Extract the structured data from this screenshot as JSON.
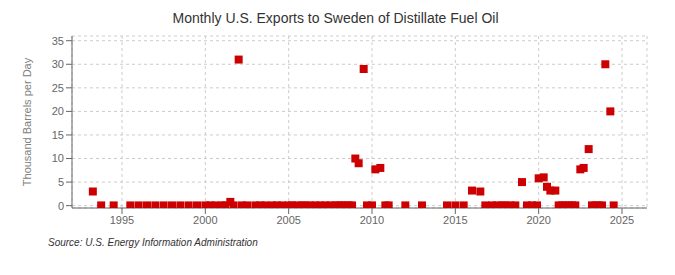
{
  "chart_data": {
    "type": "scatter",
    "title": "Monthly U.S. Exports to Sweden of Distillate Fuel Oil",
    "ylabel": "Thousand Barrels per Day",
    "annotations": [
      "Source: U.S. Energy Information Administration"
    ],
    "color": "#cc0000",
    "marker": "square",
    "grid": true,
    "xlim": [
      1992.0,
      2026.5
    ],
    "ylim": [
      -0.5,
      36
    ],
    "xticks": [
      1995,
      2000,
      2005,
      2010,
      2015,
      2020,
      2025
    ],
    "yticks": [
      0,
      5,
      10,
      15,
      20,
      25,
      30,
      35
    ],
    "x": [
      1993.25,
      1993.75,
      1994.5,
      1995.5,
      1996.0,
      1996.5,
      1997.0,
      1997.5,
      1998.0,
      1998.5,
      1999.0,
      1999.5,
      2000.0,
      2000.3,
      2000.6,
      2001.0,
      2001.2,
      2001.5,
      2001.7,
      2002.0,
      2002.2,
      2002.5,
      2003.0,
      2003.3,
      2003.6,
      2004.0,
      2004.3,
      2004.6,
      2005.0,
      2005.2,
      2005.5,
      2005.8,
      2006.0,
      2006.3,
      2006.6,
      2006.9,
      2007.2,
      2007.5,
      2007.8,
      2008.0,
      2008.2,
      2008.4,
      2008.6,
      2008.8,
      2009.0,
      2009.2,
      2009.5,
      2009.7,
      2010.0,
      2010.2,
      2010.5,
      2010.8,
      2011.0,
      2012.0,
      2013.0,
      2014.5,
      2015.0,
      2015.5,
      2016.0,
      2016.5,
      2016.8,
      2017.2,
      2017.5,
      2017.8,
      2018.0,
      2018.3,
      2018.6,
      2019.0,
      2019.3,
      2019.6,
      2019.9,
      2020.0,
      2020.3,
      2020.5,
      2020.7,
      2021.0,
      2021.2,
      2021.4,
      2021.6,
      2021.8,
      2022.0,
      2022.2,
      2022.5,
      2022.7,
      2023.0,
      2023.2,
      2023.4,
      2023.6,
      2023.8,
      2024.0,
      2024.3,
      2024.5
    ],
    "values": [
      3.0,
      0.05,
      0.05,
      0.05,
      0.05,
      0.05,
      0.05,
      0.05,
      0.05,
      0.05,
      0.05,
      0.05,
      0.05,
      0.05,
      0.05,
      0.05,
      0.05,
      0.8,
      0.05,
      31.0,
      0.05,
      0.05,
      0.05,
      0.05,
      0.05,
      0.05,
      0.05,
      0.05,
      0.05,
      0.05,
      0.05,
      0.05,
      0.05,
      0.05,
      0.05,
      0.05,
      0.05,
      0.05,
      0.05,
      0.05,
      0.05,
      0.05,
      0.05,
      0.05,
      10.0,
      9.0,
      29.0,
      0.05,
      0.05,
      7.7,
      8.0,
      0.05,
      0.05,
      0.05,
      0.05,
      0.05,
      0.05,
      0.05,
      3.2,
      3.0,
      0.05,
      0.05,
      0.05,
      0.05,
      0.05,
      0.05,
      0.05,
      5.0,
      0.05,
      0.05,
      0.05,
      5.8,
      6.0,
      4.0,
      3.2,
      3.2,
      0.05,
      0.05,
      0.05,
      0.05,
      0.05,
      0.05,
      7.7,
      8.0,
      12.0,
      0.05,
      0.05,
      0.05,
      0.05,
      30.0,
      20.0,
      0.05
    ]
  }
}
